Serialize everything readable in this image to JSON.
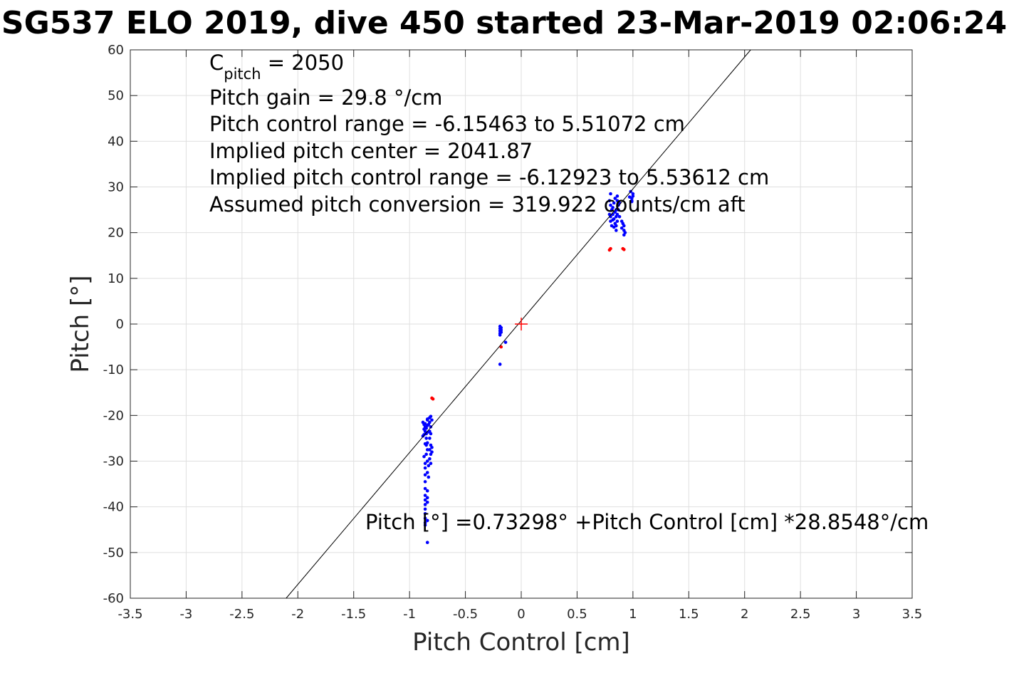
{
  "chart_data": {
    "type": "scatter",
    "title": "SG537 ELO 2019, dive 450 started 23-Mar-2019 02:06:24",
    "xlabel": "Pitch Control [cm]",
    "ylabel": "Pitch [°]",
    "xlim": [
      -3.5,
      3.5
    ],
    "ylim": [
      -60,
      60
    ],
    "xticks": [
      -3.5,
      -3,
      -2.5,
      -2,
      -1.5,
      -1,
      -0.5,
      0,
      0.5,
      1,
      1.5,
      2,
      2.5,
      3,
      3.5
    ],
    "xtick_labels": [
      "-3.5",
      "-3",
      "-2.5",
      "-2",
      "-1.5",
      "-1",
      "-0.5",
      "0",
      "0.5",
      "1",
      "1.5",
      "2",
      "2.5",
      "3",
      "3.5"
    ],
    "yticks": [
      -60,
      -50,
      -40,
      -30,
      -20,
      -10,
      0,
      10,
      20,
      30,
      40,
      50,
      60
    ],
    "ytick_labels": [
      "-60",
      "-50",
      "-40",
      "-30",
      "-20",
      "-10",
      "0",
      "10",
      "20",
      "30",
      "40",
      "50",
      "60"
    ],
    "grid": true,
    "annotations": {
      "cpitch_main": "C",
      "cpitch_sub": "pitch",
      "cpitch_value": " = 2050",
      "lines": [
        "Pitch gain = 29.8 °/cm",
        "Pitch control range = -6.15463 to 5.51072 cm",
        "Implied pitch center = 2041.87",
        "Implied pitch control range = -6.12923 to 5.53612 cm",
        "Assumed pitch conversion = 319.922 counts/cm aft"
      ],
      "fit_equation": "Pitch [°] =0.73298° +Pitch Control [cm] *28.8548°/cm"
    },
    "fit_line": {
      "intercept": 0.73298,
      "slope": 28.8548,
      "color": "#000000"
    },
    "center_marker": {
      "x": 0,
      "y": 0,
      "color": "#ff0000"
    },
    "series": [
      {
        "color": "#0000ff",
        "points": [
          [
            -0.88,
            -21.5
          ],
          [
            -0.87,
            -22.0
          ],
          [
            -0.86,
            -22.5
          ],
          [
            -0.87,
            -23.0
          ],
          [
            -0.86,
            -23.5
          ],
          [
            -0.85,
            -24.0
          ],
          [
            -0.88,
            -24.5
          ],
          [
            -0.85,
            -25.0
          ],
          [
            -0.84,
            -21.0
          ],
          [
            -0.84,
            -22.2
          ],
          [
            -0.83,
            -23.6
          ],
          [
            -0.85,
            -22.8
          ],
          [
            -0.86,
            -21.8
          ],
          [
            -0.87,
            -24.2
          ],
          [
            -0.84,
            -20.8
          ],
          [
            -0.83,
            -22.0
          ],
          [
            -0.82,
            -20.5
          ],
          [
            -0.82,
            -21.5
          ],
          [
            -0.81,
            -22.5
          ],
          [
            -0.82,
            -23.5
          ],
          [
            -0.81,
            -24.0
          ],
          [
            -0.82,
            -25.0
          ],
          [
            -0.81,
            -20.2
          ],
          [
            -0.8,
            -21.0
          ],
          [
            -0.81,
            -26.5
          ],
          [
            -0.82,
            -27.5
          ],
          [
            -0.81,
            -28.5
          ],
          [
            -0.82,
            -29.5
          ],
          [
            -0.81,
            -30.5
          ],
          [
            -0.8,
            -27.0
          ],
          [
            -0.8,
            -28.0
          ],
          [
            -0.84,
            -26.0
          ],
          [
            -0.85,
            -26.5
          ],
          [
            -0.84,
            -27.5
          ],
          [
            -0.85,
            -28.5
          ],
          [
            -0.84,
            -30.0
          ],
          [
            -0.83,
            -31.0
          ],
          [
            -0.84,
            -32.5
          ],
          [
            -0.83,
            -33.5
          ],
          [
            -0.86,
            -26.2
          ],
          [
            -0.87,
            -29.0
          ],
          [
            -0.86,
            -30.5
          ],
          [
            -0.86,
            -31.5
          ],
          [
            -0.86,
            -33.0
          ],
          [
            -0.86,
            -34.5
          ],
          [
            -0.86,
            -36.0
          ],
          [
            -0.86,
            -37.5
          ],
          [
            -0.86,
            -38.5
          ],
          [
            -0.86,
            -39.5
          ],
          [
            -0.86,
            -40.5
          ],
          [
            -0.86,
            -41.5
          ],
          [
            -0.86,
            -42.5
          ],
          [
            -0.86,
            -43.5
          ],
          [
            -0.86,
            -44.0
          ],
          [
            -0.84,
            -36.5
          ],
          [
            -0.84,
            -38.0
          ],
          [
            -0.84,
            -39.0
          ],
          [
            -0.84,
            -43.0
          ],
          [
            -0.84,
            -47.8
          ],
          [
            -0.19,
            -0.5
          ],
          [
            -0.19,
            -1.0
          ],
          [
            -0.19,
            -1.5
          ],
          [
            -0.19,
            -2.0
          ],
          [
            -0.18,
            -0.8
          ],
          [
            -0.18,
            -1.3
          ],
          [
            -0.18,
            -1.8
          ],
          [
            -0.19,
            -2.4
          ],
          [
            -0.14,
            -4.0
          ],
          [
            -0.19,
            -8.8
          ],
          [
            0.79,
            24.0
          ],
          [
            0.8,
            26.0
          ],
          [
            0.79,
            27.0
          ],
          [
            0.8,
            28.5
          ],
          [
            0.8,
            22.5
          ],
          [
            0.81,
            21.5
          ],
          [
            0.8,
            23.5
          ],
          [
            0.81,
            25.0
          ],
          [
            0.82,
            24.0
          ],
          [
            0.82,
            25.5
          ],
          [
            0.83,
            23.0
          ],
          [
            0.83,
            26.5
          ],
          [
            0.84,
            22.0
          ],
          [
            0.84,
            24.5
          ],
          [
            0.85,
            25.0
          ],
          [
            0.85,
            23.5
          ],
          [
            0.86,
            24.0
          ],
          [
            0.86,
            22.5
          ],
          [
            0.87,
            25.0
          ],
          [
            0.87,
            26.0
          ],
          [
            0.86,
            27.0
          ],
          [
            0.88,
            23.5
          ],
          [
            0.88,
            26.5
          ],
          [
            0.84,
            27.5
          ],
          [
            0.82,
            22.8
          ],
          [
            0.83,
            21.2
          ],
          [
            0.85,
            21.5
          ],
          [
            0.85,
            20.5
          ],
          [
            0.86,
            28.0
          ],
          [
            0.9,
            22.5
          ],
          [
            0.91,
            22.0
          ],
          [
            0.92,
            21.5
          ],
          [
            0.92,
            20.5
          ],
          [
            0.93,
            20.0
          ],
          [
            0.92,
            19.5
          ],
          [
            0.9,
            21.0
          ],
          [
            0.99,
            27.0
          ],
          [
            0.99,
            27.5
          ],
          [
            1.0,
            28.0
          ],
          [
            1.0,
            28.5
          ],
          [
            0.98,
            29.0
          ],
          [
            0.99,
            26.8
          ],
          [
            0.97,
            27.8
          ]
        ]
      },
      {
        "color": "#ff0000",
        "points": [
          [
            -0.79,
            -16.4
          ],
          [
            -0.8,
            -16.2
          ],
          [
            -0.18,
            -5.0
          ],
          [
            0.79,
            16.2
          ],
          [
            0.8,
            16.5
          ],
          [
            0.91,
            16.5
          ],
          [
            0.92,
            16.3
          ]
        ]
      }
    ]
  }
}
